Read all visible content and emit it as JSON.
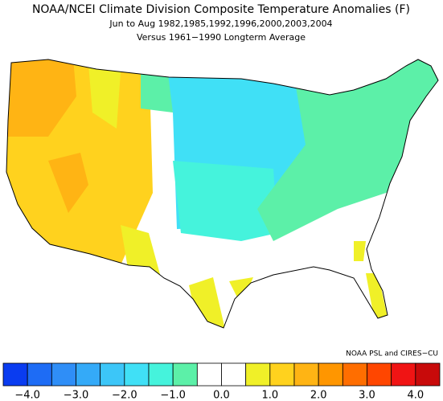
{
  "header": {
    "title": "NOAA/NCEI Climate Division Composite Temperature Anomalies (F)",
    "subtitle": "Jun to Aug  1982,1985,1992,1996,2000,2003,2004",
    "note": "Versus 1961−1990 Longterm Average"
  },
  "credit": "NOAA PSL and CIRES−CU",
  "colorbar": {
    "bins": [
      -4.5,
      -4,
      -3.5,
      -3,
      -2.5,
      -2,
      -1.5,
      -1,
      -0.5,
      0,
      0.5,
      1,
      1.5,
      2,
      2.5,
      3,
      3.5,
      4,
      4.5
    ],
    "colors": [
      "#0a3cf0",
      "#1e6cf5",
      "#2f8ef7",
      "#34aaf8",
      "#3cc6f8",
      "#40e0f6",
      "#45f3dc",
      "#5cf0a8",
      "#ffffff",
      "#ffffff",
      "#f0f028",
      "#ffd21e",
      "#ffb414",
      "#ff9600",
      "#ff6e00",
      "#ff4600",
      "#f01414",
      "#c80a0a"
    ],
    "ticks": [
      {
        "value": -4,
        "label": "−4.0"
      },
      {
        "value": -3,
        "label": "−3.0"
      },
      {
        "value": -2,
        "label": "−2.0"
      },
      {
        "value": -1,
        "label": "−1.0"
      },
      {
        "value": 0,
        "label": "0.0"
      },
      {
        "value": 1,
        "label": "1.0"
      },
      {
        "value": 2,
        "label": "2.0"
      },
      {
        "value": 3,
        "label": "3.0"
      },
      {
        "value": 4,
        "label": "4.0"
      }
    ]
  }
}
